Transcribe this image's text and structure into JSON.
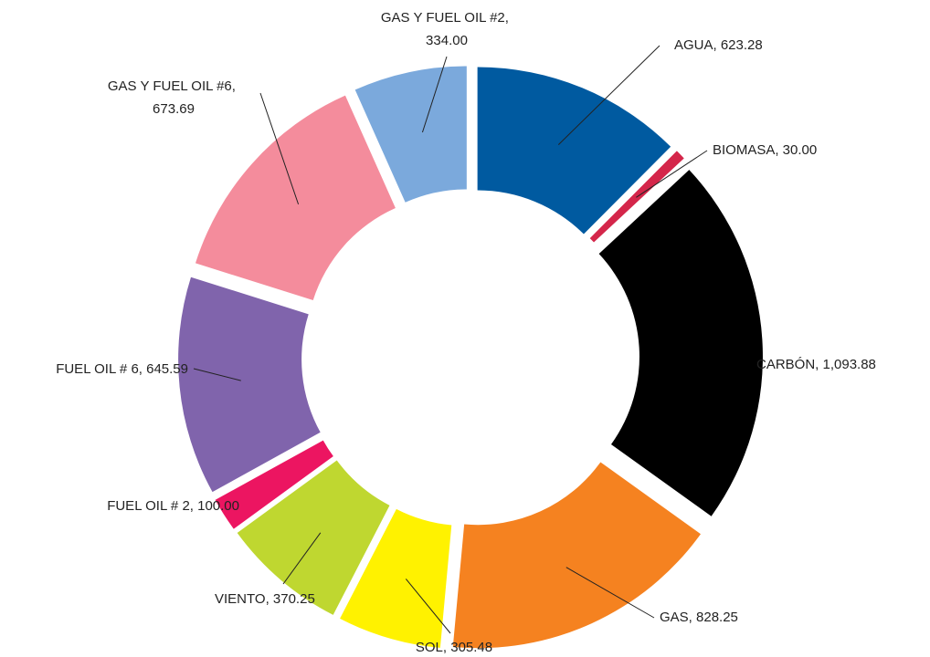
{
  "chart_data": {
    "type": "donut",
    "values": [
      623.28,
      30.0,
      1093.88,
      828.25,
      305.48,
      370.25,
      100.0,
      645.59,
      673.69,
      334.0
    ],
    "value_labels": [
      "AGUA, 623.28",
      "BIOMASA, 30.00",
      "CARBÓN, 1,093.88",
      "GAS, 828.25",
      "SOL, 305.48",
      "VIENTO, 370.25",
      "FUEL OIL # 2, 100.00",
      "FUEL OIL # 6, 645.59",
      "GAS Y FUEL OIL #6, 673.69",
      "GAS Y FUEL OIL #2, 334.00"
    ],
    "colors": [
      "#005aa0",
      "#d4264a",
      "#000000",
      "#f58220",
      "#fff200",
      "#bfd730",
      "#ec1561",
      "#8064ac",
      "#f48c9c",
      "#7ba9dc"
    ]
  }
}
